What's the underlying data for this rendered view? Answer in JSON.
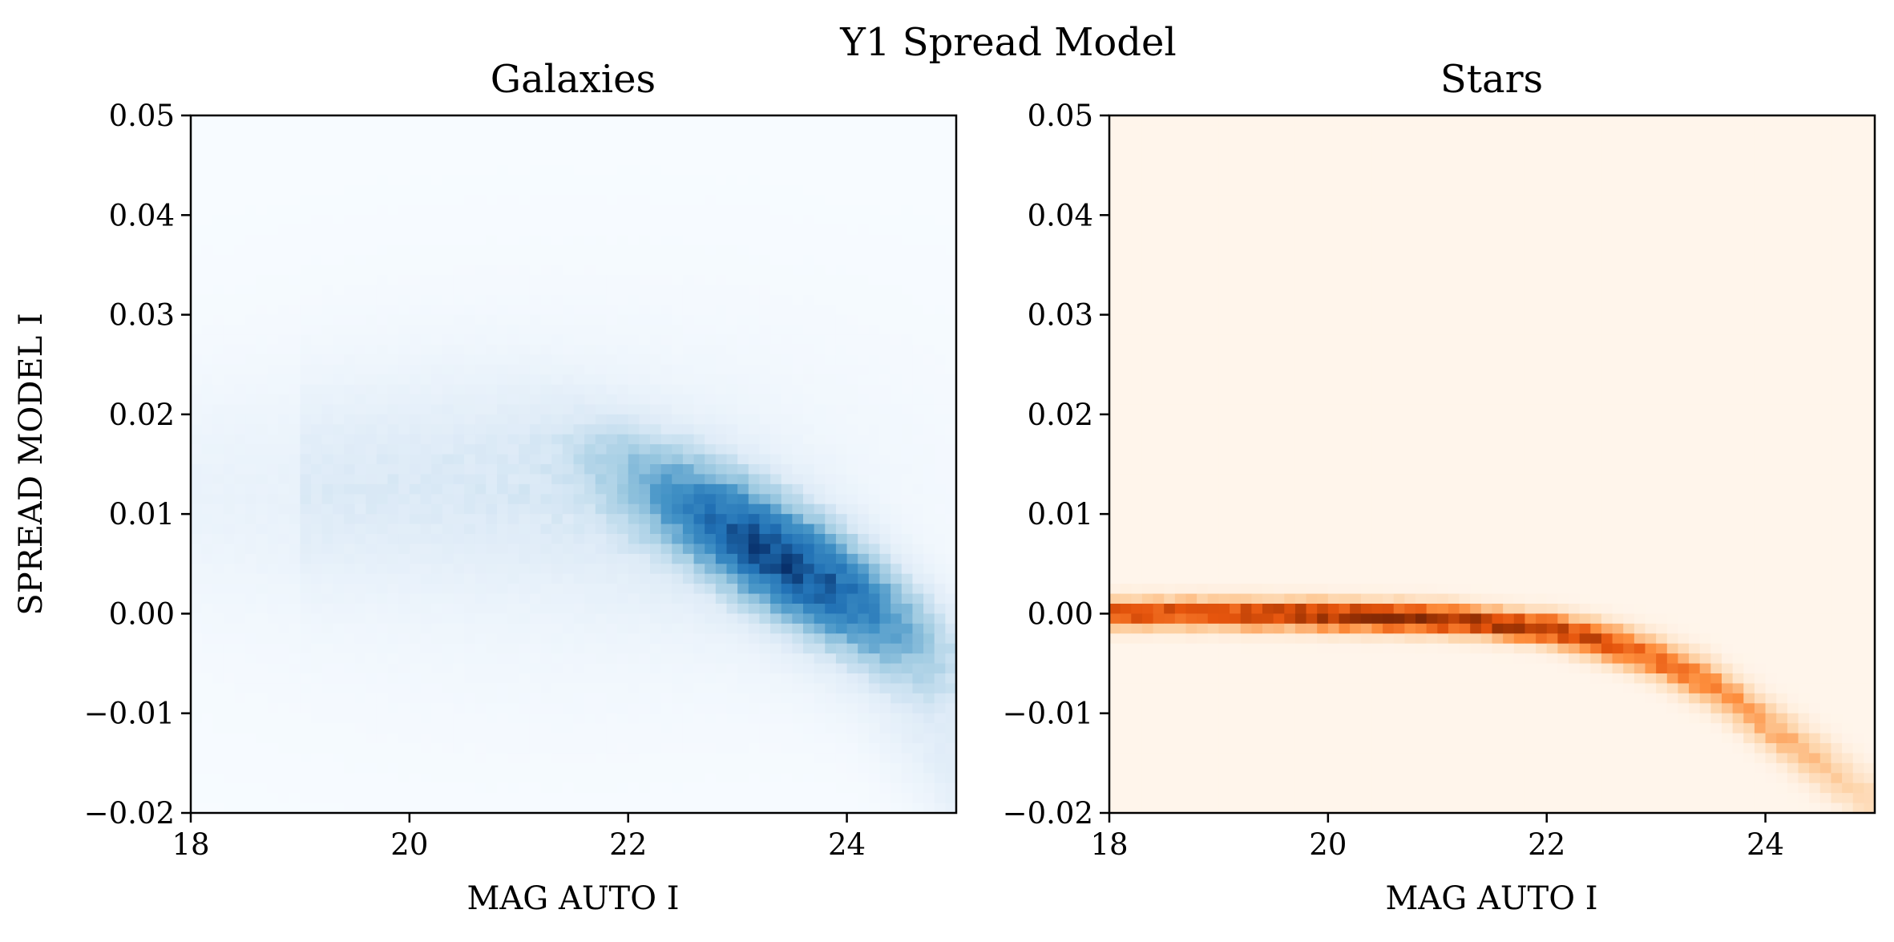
{
  "suptitle": "Y1 Spread Model",
  "chart_data": [
    {
      "type": "heatmap",
      "title": "Galaxies",
      "xlabel": "MAG AUTO I",
      "ylabel": "SPREAD MODEL I",
      "xlim": [
        18,
        25
      ],
      "ylim": [
        -0.02,
        0.05
      ],
      "x_ticks": [
        18,
        20,
        22,
        24
      ],
      "y_ticks": [
        -0.02,
        -0.01,
        0.0,
        0.01,
        0.02,
        0.03,
        0.04,
        0.05
      ],
      "x_tick_labels": [
        "18",
        "20",
        "22",
        "24"
      ],
      "y_tick_labels": [
        "−0.02",
        "−0.01",
        "0.00",
        "0.01",
        "0.02",
        "0.03",
        "0.04",
        "0.05"
      ],
      "colormap": "Blues",
      "color_low": "#f7fbff",
      "color_high": "#08306b",
      "density_peak": {
        "x": 23.4,
        "y": 0.0055
      },
      "density_ridge": [
        {
          "x": 19.0,
          "y": 0.0125
        },
        {
          "x": 20.0,
          "y": 0.0135
        },
        {
          "x": 21.0,
          "y": 0.013
        },
        {
          "x": 22.0,
          "y": 0.011
        },
        {
          "x": 22.8,
          "y": 0.0085
        },
        {
          "x": 23.4,
          "y": 0.0055
        },
        {
          "x": 24.0,
          "y": 0.001
        },
        {
          "x": 24.5,
          "y": -0.006
        },
        {
          "x": 25.0,
          "y": -0.014
        }
      ]
    },
    {
      "type": "heatmap",
      "title": "Stars",
      "xlabel": "MAG AUTO I",
      "xlim": [
        18,
        25
      ],
      "ylim": [
        -0.02,
        0.05
      ],
      "x_ticks": [
        18,
        20,
        22,
        24
      ],
      "y_ticks": [
        -0.02,
        -0.01,
        0.0,
        0.01,
        0.02,
        0.03,
        0.04,
        0.05
      ],
      "x_tick_labels": [
        "18",
        "20",
        "22",
        "24"
      ],
      "y_tick_labels": [
        "−0.02",
        "−0.01",
        "0.00",
        "0.01",
        "0.02",
        "0.03",
        "0.04",
        "0.05"
      ],
      "colormap": "Oranges",
      "color_low": "#fff5eb",
      "color_high": "#7f2704",
      "density_peak": {
        "x": 20.7,
        "y": 0.0
      },
      "stellar_locus": [
        {
          "x": 18.0,
          "y": 0.0
        },
        {
          "x": 19.0,
          "y": 0.0
        },
        {
          "x": 20.0,
          "y": -0.0002
        },
        {
          "x": 21.0,
          "y": -0.0005
        },
        {
          "x": 22.0,
          "y": -0.0015
        },
        {
          "x": 22.6,
          "y": -0.003
        },
        {
          "x": 23.0,
          "y": -0.0045
        },
        {
          "x": 23.5,
          "y": -0.007
        },
        {
          "x": 24.0,
          "y": -0.011
        },
        {
          "x": 24.5,
          "y": -0.015
        },
        {
          "x": 25.0,
          "y": -0.019
        }
      ]
    }
  ]
}
